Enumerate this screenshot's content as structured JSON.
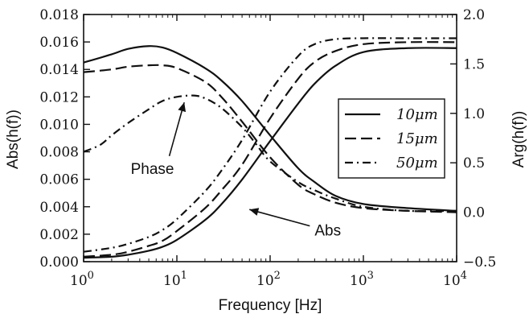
{
  "chart_data": {
    "type": "line",
    "xlabel": "Frequency [Hz]",
    "ylabel_left": "Abs(h(f))",
    "ylabel_right": "Arg(h(f))",
    "xscale": "log",
    "xlim": [
      1,
      10000
    ],
    "ylim_left": [
      0,
      0.018
    ],
    "ylim_right": [
      -0.5,
      2.0
    ],
    "x_tick_labels": [
      {
        "base": "10",
        "exp": "0"
      },
      {
        "base": "10",
        "exp": "1"
      },
      {
        "base": "10",
        "exp": "2"
      },
      {
        "base": "10",
        "exp": "3"
      },
      {
        "base": "10",
        "exp": "4"
      }
    ],
    "y_left_ticks": [
      "0.000",
      "0.002",
      "0.004",
      "0.006",
      "0.008",
      "0.010",
      "0.012",
      "0.014",
      "0.016",
      "0.018"
    ],
    "y_right_ticks": [
      "−0.5",
      "0.0",
      "0.5",
      "1.0",
      "1.5",
      "2.0"
    ],
    "grid": false,
    "legend_position": "right",
    "legend": [
      {
        "label": "10μm",
        "dash": "solid"
      },
      {
        "label": "15μm",
        "dash": "dashed"
      },
      {
        "label": "50μm",
        "dash": "dashdot"
      }
    ],
    "series": [
      {
        "name": "10μm",
        "quantity": "Abs",
        "axis": "left",
        "dash": "solid",
        "x": [
          1,
          2,
          3,
          5,
          7,
          10,
          20,
          30,
          50,
          100,
          200,
          300,
          500,
          1000,
          3000,
          10000
        ],
        "y": [
          0.0145,
          0.0151,
          0.0155,
          0.0157,
          0.0156,
          0.0152,
          0.0141,
          0.0132,
          0.0117,
          0.0092,
          0.0068,
          0.0058,
          0.0048,
          0.0042,
          0.0039,
          0.0037
        ]
      },
      {
        "name": "15μm",
        "quantity": "Abs",
        "axis": "left",
        "dash": "dashed",
        "x": [
          1,
          2,
          3,
          5,
          7,
          10,
          20,
          30,
          50,
          100,
          200,
          300,
          500,
          1000,
          3000,
          10000
        ],
        "y": [
          0.0138,
          0.014,
          0.0142,
          0.0143,
          0.0143,
          0.0141,
          0.0131,
          0.012,
          0.0102,
          0.0076,
          0.0056,
          0.0049,
          0.0043,
          0.0039,
          0.0037,
          0.0036
        ]
      },
      {
        "name": "10μm",
        "quantity": "Arg",
        "axis": "right",
        "dash": "solid",
        "x": [
          1,
          2,
          3,
          5,
          7,
          10,
          20,
          30,
          50,
          100,
          200,
          300,
          500,
          1000,
          3000,
          10000
        ],
        "y": [
          -0.46,
          -0.45,
          -0.43,
          -0.39,
          -0.35,
          -0.28,
          -0.08,
          0.08,
          0.33,
          0.72,
          1.1,
          1.3,
          1.48,
          1.62,
          1.66,
          1.66
        ]
      },
      {
        "name": "15μm",
        "quantity": "Arg",
        "axis": "right",
        "dash": "dashed",
        "x": [
          1,
          2,
          3,
          5,
          7,
          10,
          20,
          30,
          50,
          100,
          200,
          300,
          500,
          1000,
          3000,
          10000
        ],
        "y": [
          -0.45,
          -0.43,
          -0.4,
          -0.34,
          -0.29,
          -0.19,
          0.04,
          0.22,
          0.48,
          0.95,
          1.35,
          1.52,
          1.63,
          1.7,
          1.72,
          1.72
        ]
      },
      {
        "name": "50μm",
        "quantity": "Arg",
        "axis": "right",
        "dash": "dashdot",
        "x": [
          1,
          2,
          3,
          5,
          7,
          10,
          20,
          30,
          50,
          100,
          200,
          300,
          500,
          1000,
          3000,
          10000
        ],
        "y": [
          -0.4,
          -0.36,
          -0.32,
          -0.25,
          -0.18,
          -0.07,
          0.21,
          0.42,
          0.73,
          1.22,
          1.58,
          1.7,
          1.75,
          1.76,
          1.76,
          1.76
        ]
      },
      {
        "name": "50μm",
        "quantity": "Abs",
        "axis": "left",
        "dash": "dashdot",
        "x": [
          1,
          1.5,
          2,
          3,
          5,
          7,
          10,
          15,
          20,
          30,
          50,
          70,
          100,
          200,
          300,
          500,
          1000,
          3000,
          10000
        ],
        "y": [
          0.008,
          0.0085,
          0.0092,
          0.0101,
          0.0111,
          0.0117,
          0.012,
          0.0121,
          0.0119,
          0.0112,
          0.0098,
          0.0086,
          0.0073,
          0.0058,
          0.0052,
          0.0046,
          0.004,
          0.0037,
          0.0037
        ]
      }
    ],
    "annotations": [
      {
        "text": "Phase",
        "points_to": {
          "x": 12,
          "axis": "left",
          "y": 0.0116
        },
        "text_at": {
          "x": 3.2,
          "y": 0.0064
        }
      },
      {
        "text": "Abs",
        "points_to": {
          "x": 60,
          "axis": "left",
          "y": 0.0038
        },
        "text_at": {
          "x": 300,
          "y": 0.0019
        }
      }
    ]
  }
}
